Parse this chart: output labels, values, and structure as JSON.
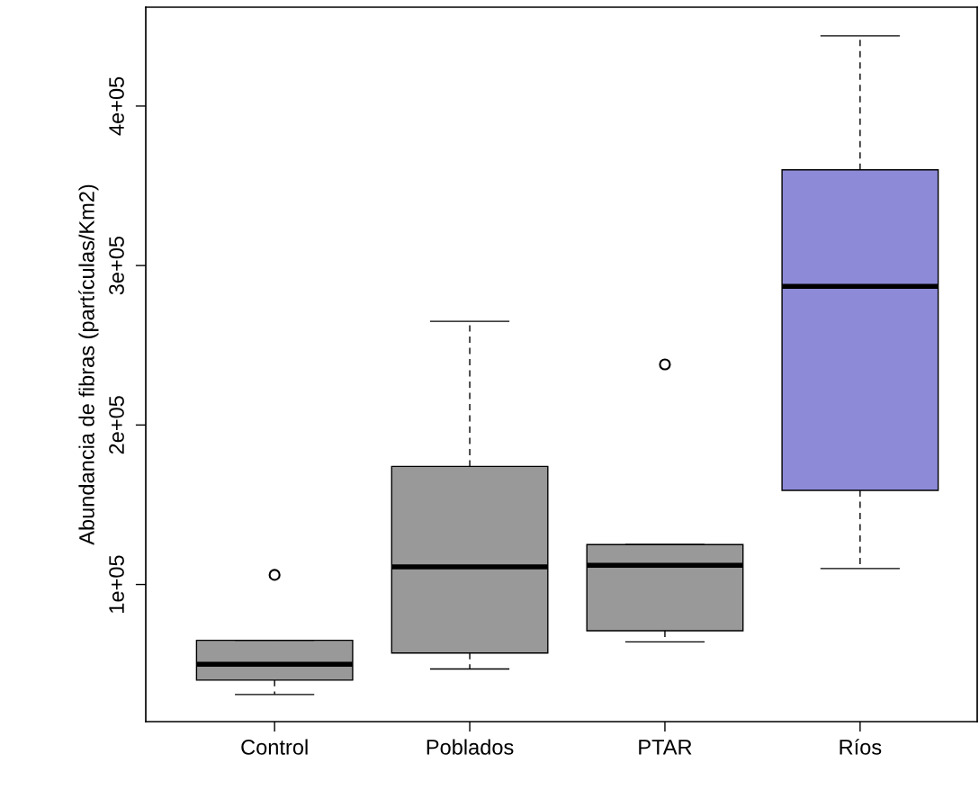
{
  "chart_data": {
    "type": "box",
    "ylabel": "Abundancia de fibras (partículas/Km2)",
    "categories": [
      "Control",
      "Poblados",
      "PTAR",
      "Ríos"
    ],
    "colors": [
      "#999999",
      "#999999",
      "#999999",
      "#8d8bd8"
    ],
    "boxes": [
      {
        "low": 31000,
        "q1": 40000,
        "median": 50000,
        "q3": 65000,
        "high": 65000,
        "outliers": [
          106000
        ]
      },
      {
        "low": 47000,
        "q1": 57000,
        "median": 111000,
        "q3": 174000,
        "high": 265000
      },
      {
        "low": 64000,
        "q1": 71000,
        "median": 112000,
        "q3": 125000,
        "high": 125000,
        "outliers": [
          238000
        ]
      },
      {
        "low": 110000,
        "q1": 159000,
        "median": 287000,
        "q3": 360000,
        "high": 444000
      }
    ],
    "ylim": [
      14000,
      462000
    ],
    "yticks": [
      {
        "value": 100000,
        "label": "1e+05"
      },
      {
        "value": 200000,
        "label": "2e+05"
      },
      {
        "value": 300000,
        "label": "3e+05"
      },
      {
        "value": 400000,
        "label": "4e+05"
      }
    ],
    "grid": false
  }
}
